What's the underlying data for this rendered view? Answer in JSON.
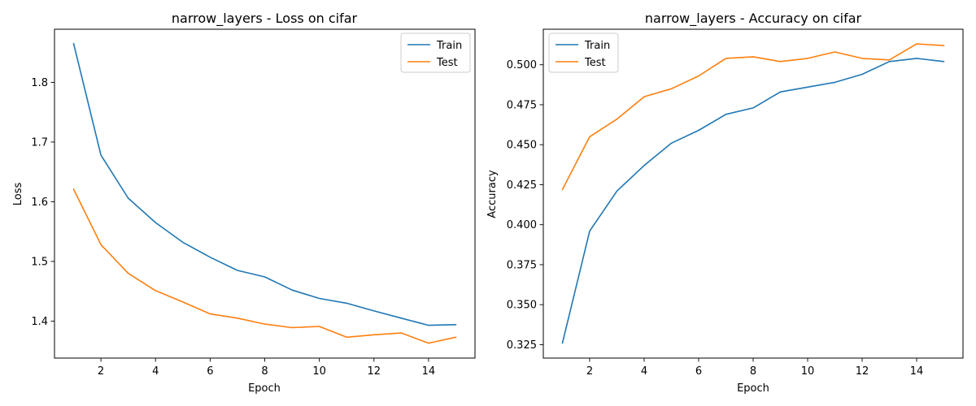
{
  "chart_data": [
    {
      "type": "line",
      "title": "narrow_layers - Loss on cifar",
      "xlabel": "Epoch",
      "ylabel": "Loss",
      "x": [
        1,
        2,
        3,
        4,
        5,
        6,
        7,
        8,
        9,
        10,
        11,
        12,
        13,
        14,
        15
      ],
      "xlim": [
        0.3,
        15.7
      ],
      "ylim": [
        1.338,
        1.889
      ],
      "xticks": [
        2,
        4,
        6,
        8,
        10,
        12,
        14
      ],
      "yticks": [
        1.4,
        1.5,
        1.6,
        1.7,
        1.8
      ],
      "ytick_decimals": 1,
      "legend": "top-right",
      "grid": false,
      "series": [
        {
          "name": "Train",
          "color": "#1f77b4",
          "values": [
            1.865,
            1.678,
            1.606,
            1.565,
            1.532,
            1.507,
            1.485,
            1.474,
            1.452,
            1.438,
            1.43,
            1.417,
            1.405,
            1.393,
            1.394
          ]
        },
        {
          "name": "Test",
          "color": "#ff7f0e",
          "values": [
            1.621,
            1.528,
            1.48,
            1.451,
            1.432,
            1.412,
            1.405,
            1.395,
            1.389,
            1.391,
            1.373,
            1.377,
            1.38,
            1.363,
            1.373
          ]
        }
      ]
    },
    {
      "type": "line",
      "title": "narrow_layers - Accuracy on cifar",
      "xlabel": "Epoch",
      "ylabel": "Accuracy",
      "x": [
        1,
        2,
        3,
        4,
        5,
        6,
        7,
        8,
        9,
        10,
        11,
        12,
        13,
        14,
        15
      ],
      "xlim": [
        0.3,
        15.7
      ],
      "ylim": [
        0.3166,
        0.5222
      ],
      "xticks": [
        2,
        4,
        6,
        8,
        10,
        12,
        14
      ],
      "yticks": [
        0.325,
        0.35,
        0.375,
        0.4,
        0.425,
        0.45,
        0.475,
        0.5
      ],
      "ytick_decimals": 3,
      "legend": "top-left",
      "grid": false,
      "series": [
        {
          "name": "Train",
          "color": "#1f77b4",
          "values": [
            0.326,
            0.396,
            0.421,
            0.437,
            0.451,
            0.459,
            0.469,
            0.473,
            0.483,
            0.486,
            0.489,
            0.494,
            0.502,
            0.504,
            0.502
          ]
        },
        {
          "name": "Test",
          "color": "#ff7f0e",
          "values": [
            0.422,
            0.455,
            0.466,
            0.48,
            0.485,
            0.493,
            0.504,
            0.505,
            0.502,
            0.504,
            0.508,
            0.504,
            0.503,
            0.513,
            0.512
          ]
        }
      ]
    }
  ]
}
